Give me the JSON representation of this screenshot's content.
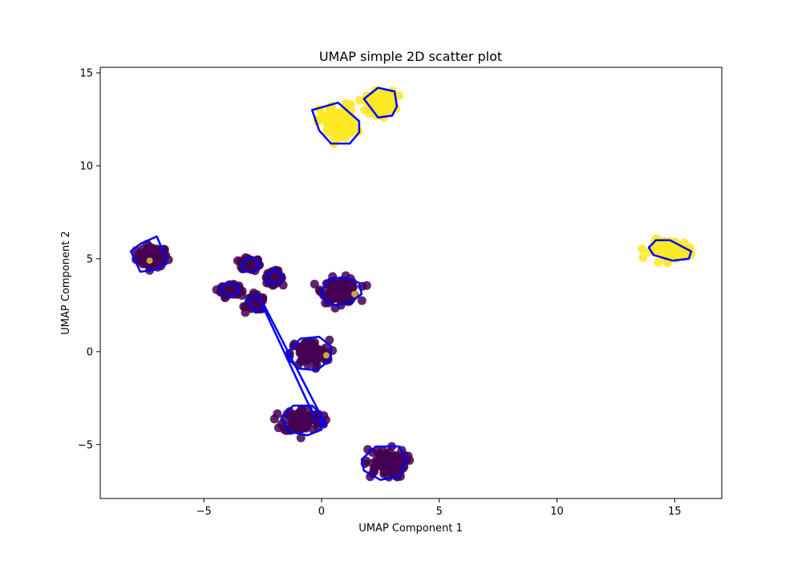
{
  "chart_data": {
    "type": "scatter",
    "title": "UMAP simple 2D scatter plot",
    "xlabel": "UMAP Component 1",
    "ylabel": "UMAP Component 2",
    "xlim": [
      -9.4,
      17.0
    ],
    "ylim": [
      -7.9,
      15.3
    ],
    "xticks": [
      -5,
      0,
      5,
      10,
      15
    ],
    "yticks": [
      -5,
      0,
      5,
      10,
      15
    ],
    "xtick_labels": [
      "−5",
      "0",
      "5",
      "10",
      "15"
    ],
    "ytick_labels": [
      "−5",
      "0",
      "5",
      "10",
      "15"
    ],
    "grid": false,
    "legend": "none",
    "colors": {
      "class_0": "#440154",
      "class_1": "#fde725",
      "hull": "#0000ff",
      "overlap_point": "#c9a93a"
    },
    "clusters": [
      {
        "label": 0,
        "center": [
          -7.2,
          5.1
        ],
        "spread": [
          0.6,
          0.5
        ]
      },
      {
        "label": 0,
        "center": [
          -3.0,
          4.7
        ],
        "spread": [
          0.35,
          0.3
        ]
      },
      {
        "label": 0,
        "center": [
          -3.9,
          3.3
        ],
        "spread": [
          0.35,
          0.25
        ]
      },
      {
        "label": 0,
        "center": [
          -2.0,
          4.0
        ],
        "spread": [
          0.3,
          0.3
        ]
      },
      {
        "label": 0,
        "center": [
          -2.8,
          2.6
        ],
        "spread": [
          0.35,
          0.35
        ]
      },
      {
        "label": 0,
        "center": [
          0.8,
          3.3
        ],
        "spread": [
          0.7,
          0.6
        ]
      },
      {
        "label": 0,
        "center": [
          -0.5,
          -0.1
        ],
        "spread": [
          0.75,
          0.65
        ]
      },
      {
        "label": 0,
        "center": [
          -0.8,
          -3.7
        ],
        "spread": [
          0.75,
          0.6
        ]
      },
      {
        "label": 0,
        "center": [
          2.7,
          -6.0
        ],
        "spread": [
          0.8,
          0.7
        ]
      },
      {
        "label": 1,
        "center": [
          0.7,
          12.3
        ],
        "spread": [
          0.7,
          0.9
        ]
      },
      {
        "label": 1,
        "center": [
          2.5,
          13.4
        ],
        "spread": [
          0.55,
          0.55
        ]
      },
      {
        "label": 1,
        "center": [
          14.9,
          5.5
        ],
        "spread": [
          0.8,
          0.45
        ]
      }
    ],
    "hulls": [
      [
        [
          -8.1,
          5.4
        ],
        [
          -7.7,
          5.8
        ],
        [
          -7.0,
          6.2
        ],
        [
          -6.7,
          5.3
        ],
        [
          -6.6,
          4.7
        ],
        [
          -7.1,
          4.4
        ],
        [
          -7.7,
          4.3
        ]
      ],
      [
        [
          -3.4,
          4.6
        ],
        [
          -3.2,
          5.0
        ],
        [
          -2.8,
          5.0
        ],
        [
          -2.6,
          4.6
        ],
        [
          -2.9,
          4.3
        ],
        [
          -3.3,
          4.3
        ]
      ],
      [
        [
          -4.3,
          3.4
        ],
        [
          -4.0,
          3.7
        ],
        [
          -3.6,
          3.6
        ],
        [
          -3.5,
          3.2
        ],
        [
          -3.8,
          3.0
        ],
        [
          -4.2,
          3.1
        ]
      ],
      [
        [
          -2.3,
          4.1
        ],
        [
          -2.0,
          4.4
        ],
        [
          -1.7,
          4.2
        ],
        [
          -1.7,
          3.8
        ],
        [
          -2.0,
          3.6
        ],
        [
          -2.3,
          3.7
        ]
      ],
      [
        [
          -3.2,
          2.8
        ],
        [
          -2.7,
          3.0
        ],
        [
          -0.2,
          -3.8
        ],
        [
          0.2,
          -4.0
        ],
        [
          -2.4,
          2.4
        ],
        [
          -2.8,
          2.1
        ]
      ],
      [
        [
          0.0,
          3.3
        ],
        [
          0.3,
          3.9
        ],
        [
          0.9,
          4.0
        ],
        [
          1.6,
          3.7
        ],
        [
          1.7,
          3.1
        ],
        [
          1.2,
          2.6
        ],
        [
          0.5,
          2.5
        ],
        [
          0.0,
          2.9
        ]
      ],
      [
        [
          -1.4,
          0.0
        ],
        [
          -0.9,
          0.7
        ],
        [
          -0.1,
          0.8
        ],
        [
          0.4,
          0.3
        ],
        [
          0.4,
          -0.4
        ],
        [
          -0.2,
          -1.0
        ],
        [
          -1.0,
          -0.9
        ],
        [
          -1.4,
          -0.4
        ]
      ],
      [
        [
          -1.7,
          -3.5
        ],
        [
          -1.2,
          -2.9
        ],
        [
          -0.4,
          -2.9
        ],
        [
          0.0,
          -3.4
        ],
        [
          0.0,
          -4.2
        ],
        [
          -0.6,
          -4.5
        ],
        [
          -1.4,
          -4.3
        ]
      ],
      [
        [
          1.7,
          -5.8
        ],
        [
          2.3,
          -5.1
        ],
        [
          3.3,
          -5.1
        ],
        [
          3.6,
          -5.8
        ],
        [
          3.3,
          -6.7
        ],
        [
          2.5,
          -6.9
        ],
        [
          1.8,
          -6.4
        ]
      ],
      [
        [
          -0.4,
          13.0
        ],
        [
          0.7,
          13.4
        ],
        [
          1.6,
          12.4
        ],
        [
          1.6,
          11.8
        ],
        [
          1.2,
          11.2
        ],
        [
          0.4,
          11.2
        ],
        [
          -0.1,
          11.9
        ]
      ],
      [
        [
          1.8,
          13.6
        ],
        [
          2.4,
          14.2
        ],
        [
          3.1,
          14.0
        ],
        [
          3.2,
          13.2
        ],
        [
          3.0,
          12.7
        ],
        [
          2.4,
          12.6
        ]
      ],
      [
        [
          13.9,
          5.6
        ],
        [
          14.2,
          6.0
        ],
        [
          14.8,
          6.0
        ],
        [
          15.7,
          5.4
        ],
        [
          15.6,
          5.0
        ],
        [
          14.9,
          4.9
        ],
        [
          14.1,
          5.2
        ]
      ]
    ],
    "highlighted_points": [
      [
        -7.3,
        4.9
      ],
      [
        1.4,
        3.1
      ],
      [
        0.2,
        -0.2
      ]
    ]
  }
}
